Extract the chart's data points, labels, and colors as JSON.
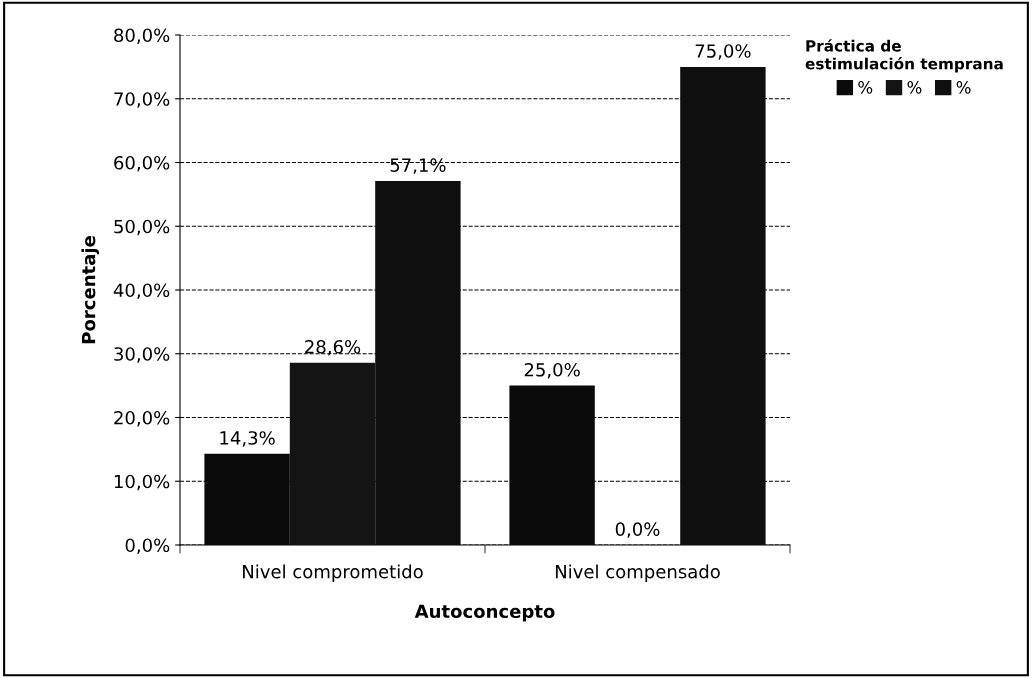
{
  "chart_data": {
    "type": "bar",
    "xlabel": "Autoconcepto",
    "ylabel": "Porcentaje",
    "legend_title": "Práctica de\nestimulación temprana",
    "categories": [
      "Nivel comprometido",
      "Nivel compensado"
    ],
    "series": [
      {
        "name": "%",
        "color": "#0a0a0a",
        "values": [
          14.3,
          25.0
        ],
        "value_labels": [
          "14,3%",
          "25,0%"
        ]
      },
      {
        "name": "%",
        "color": "#141414",
        "values": [
          28.6,
          0.0
        ],
        "value_labels": [
          "28,6%",
          "0,0%"
        ]
      },
      {
        "name": "%",
        "color": "#0f0f0f",
        "values": [
          57.1,
          75.0
        ],
        "value_labels": [
          "57,1%",
          "75,0%"
        ]
      }
    ],
    "ylim": [
      0,
      80
    ],
    "yticks": [
      {
        "value": 0,
        "label": "0,0%"
      },
      {
        "value": 10,
        "label": "10,0%"
      },
      {
        "value": 20,
        "label": "20,0%"
      },
      {
        "value": 30,
        "label": "30,0%"
      },
      {
        "value": 40,
        "label": "40,0%"
      },
      {
        "value": 50,
        "label": "50,0%"
      },
      {
        "value": 60,
        "label": "60,0%"
      },
      {
        "value": 70,
        "label": "70,0%"
      },
      {
        "value": 80,
        "label": "80,0%"
      }
    ],
    "grid": "y",
    "legend": "right"
  }
}
